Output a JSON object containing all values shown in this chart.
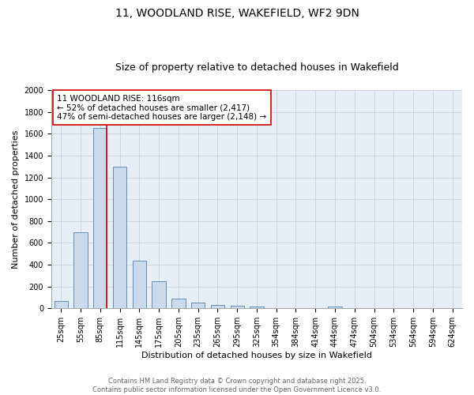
{
  "title_line1": "11, WOODLAND RISE, WAKEFIELD, WF2 9DN",
  "title_line2": "Size of property relative to detached houses in Wakefield",
  "xlabel": "Distribution of detached houses by size in Wakefield",
  "ylabel": "Number of detached properties",
  "categories": [
    "25sqm",
    "55sqm",
    "85sqm",
    "115sqm",
    "145sqm",
    "175sqm",
    "205sqm",
    "235sqm",
    "265sqm",
    "295sqm",
    "325sqm",
    "354sqm",
    "384sqm",
    "414sqm",
    "444sqm",
    "474sqm",
    "504sqm",
    "534sqm",
    "564sqm",
    "594sqm",
    "624sqm"
  ],
  "values": [
    65,
    700,
    1650,
    1300,
    440,
    250,
    90,
    50,
    30,
    25,
    20,
    0,
    0,
    0,
    15,
    0,
    0,
    0,
    0,
    0,
    0
  ],
  "bar_color": "#ccd9ea",
  "bar_edge_color": "#6090b8",
  "bar_edge_width": 0.7,
  "grid_color": "#c8d0dc",
  "background_color": "#e8eef5",
  "ylim": [
    0,
    2000
  ],
  "yticks": [
    0,
    200,
    400,
    600,
    800,
    1000,
    1200,
    1400,
    1600,
    1800,
    2000
  ],
  "red_line_color": "#cc0000",
  "red_line_index": 2.5,
  "annotation_text_line1": "11 WOODLAND RISE: 116sqm",
  "annotation_text_line2": "← 52% of detached houses are smaller (2,417)",
  "annotation_text_line3": "47% of semi-detached houses are larger (2,148) →",
  "annotation_box_color": "#ffffff",
  "annotation_box_edge": "#cc0000",
  "footer_line1": "Contains HM Land Registry data © Crown copyright and database right 2025.",
  "footer_line2": "Contains public sector information licensed under the Open Government Licence v3.0.",
  "title_fontsize": 10,
  "subtitle_fontsize": 9,
  "axis_label_fontsize": 8,
  "tick_fontsize": 7,
  "annotation_fontsize": 7.5,
  "footer_fontsize": 6
}
